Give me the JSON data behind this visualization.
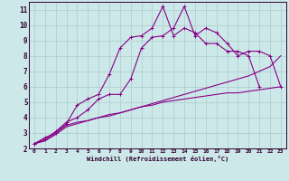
{
  "xlabel": "Windchill (Refroidissement éolien,°C)",
  "bg_color": "#cce8e8",
  "grid_color": "#aacccc",
  "line_color": "#880088",
  "xlim": [
    -0.5,
    23.5
  ],
  "ylim": [
    2,
    11.5
  ],
  "xticks": [
    0,
    1,
    2,
    3,
    4,
    5,
    6,
    7,
    8,
    9,
    10,
    11,
    12,
    13,
    14,
    15,
    16,
    17,
    18,
    19,
    20,
    21,
    22,
    23
  ],
  "yticks": [
    2,
    3,
    4,
    5,
    6,
    7,
    8,
    9,
    10,
    11
  ],
  "line1_x": [
    0,
    1,
    2,
    3,
    4,
    5,
    6,
    7,
    8,
    9,
    10,
    11,
    12,
    13,
    14,
    15,
    16,
    17,
    18,
    19,
    20,
    21,
    22,
    23
  ],
  "line1_y": [
    2.3,
    2.7,
    3.0,
    3.6,
    4.8,
    5.2,
    5.5,
    6.8,
    8.5,
    9.2,
    9.3,
    9.8,
    11.2,
    9.3,
    9.8,
    9.5,
    8.8,
    8.8,
    8.3,
    8.3,
    8.0,
    6.0,
    null,
    null
  ],
  "line2_x": [
    0,
    1,
    2,
    3,
    4,
    5,
    6,
    7,
    8,
    9,
    10,
    11,
    12,
    13,
    14,
    15,
    16,
    17,
    18,
    19,
    20,
    21,
    22,
    23
  ],
  "line2_y": [
    2.3,
    2.6,
    3.1,
    3.7,
    4.0,
    4.5,
    5.2,
    5.5,
    5.5,
    6.5,
    8.5,
    9.2,
    9.3,
    9.8,
    11.2,
    9.3,
    9.8,
    9.5,
    8.8,
    8.0,
    8.3,
    8.3,
    8.0,
    6.0
  ],
  "line3_x": [
    0,
    1,
    2,
    3,
    4,
    5,
    6,
    7,
    8,
    9,
    10,
    11,
    12,
    13,
    14,
    15,
    16,
    17,
    18,
    19,
    20,
    21,
    22,
    23
  ],
  "line3_y": [
    2.3,
    2.5,
    2.9,
    3.4,
    3.6,
    3.8,
    4.0,
    4.2,
    4.3,
    4.5,
    4.7,
    4.8,
    5.0,
    5.1,
    5.2,
    5.3,
    5.4,
    5.5,
    5.6,
    5.6,
    5.7,
    5.8,
    5.9,
    6.0
  ],
  "line4_x": [
    0,
    1,
    2,
    3,
    4,
    5,
    6,
    7,
    8,
    9,
    10,
    11,
    12,
    13,
    14,
    15,
    16,
    17,
    18,
    19,
    20,
    21,
    22,
    23
  ],
  "line4_y": [
    2.3,
    2.5,
    3.0,
    3.5,
    3.7,
    3.8,
    4.0,
    4.1,
    4.3,
    4.5,
    4.7,
    4.9,
    5.1,
    5.3,
    5.5,
    5.7,
    5.9,
    6.1,
    6.3,
    6.5,
    6.7,
    7.0,
    7.3,
    8.0
  ]
}
